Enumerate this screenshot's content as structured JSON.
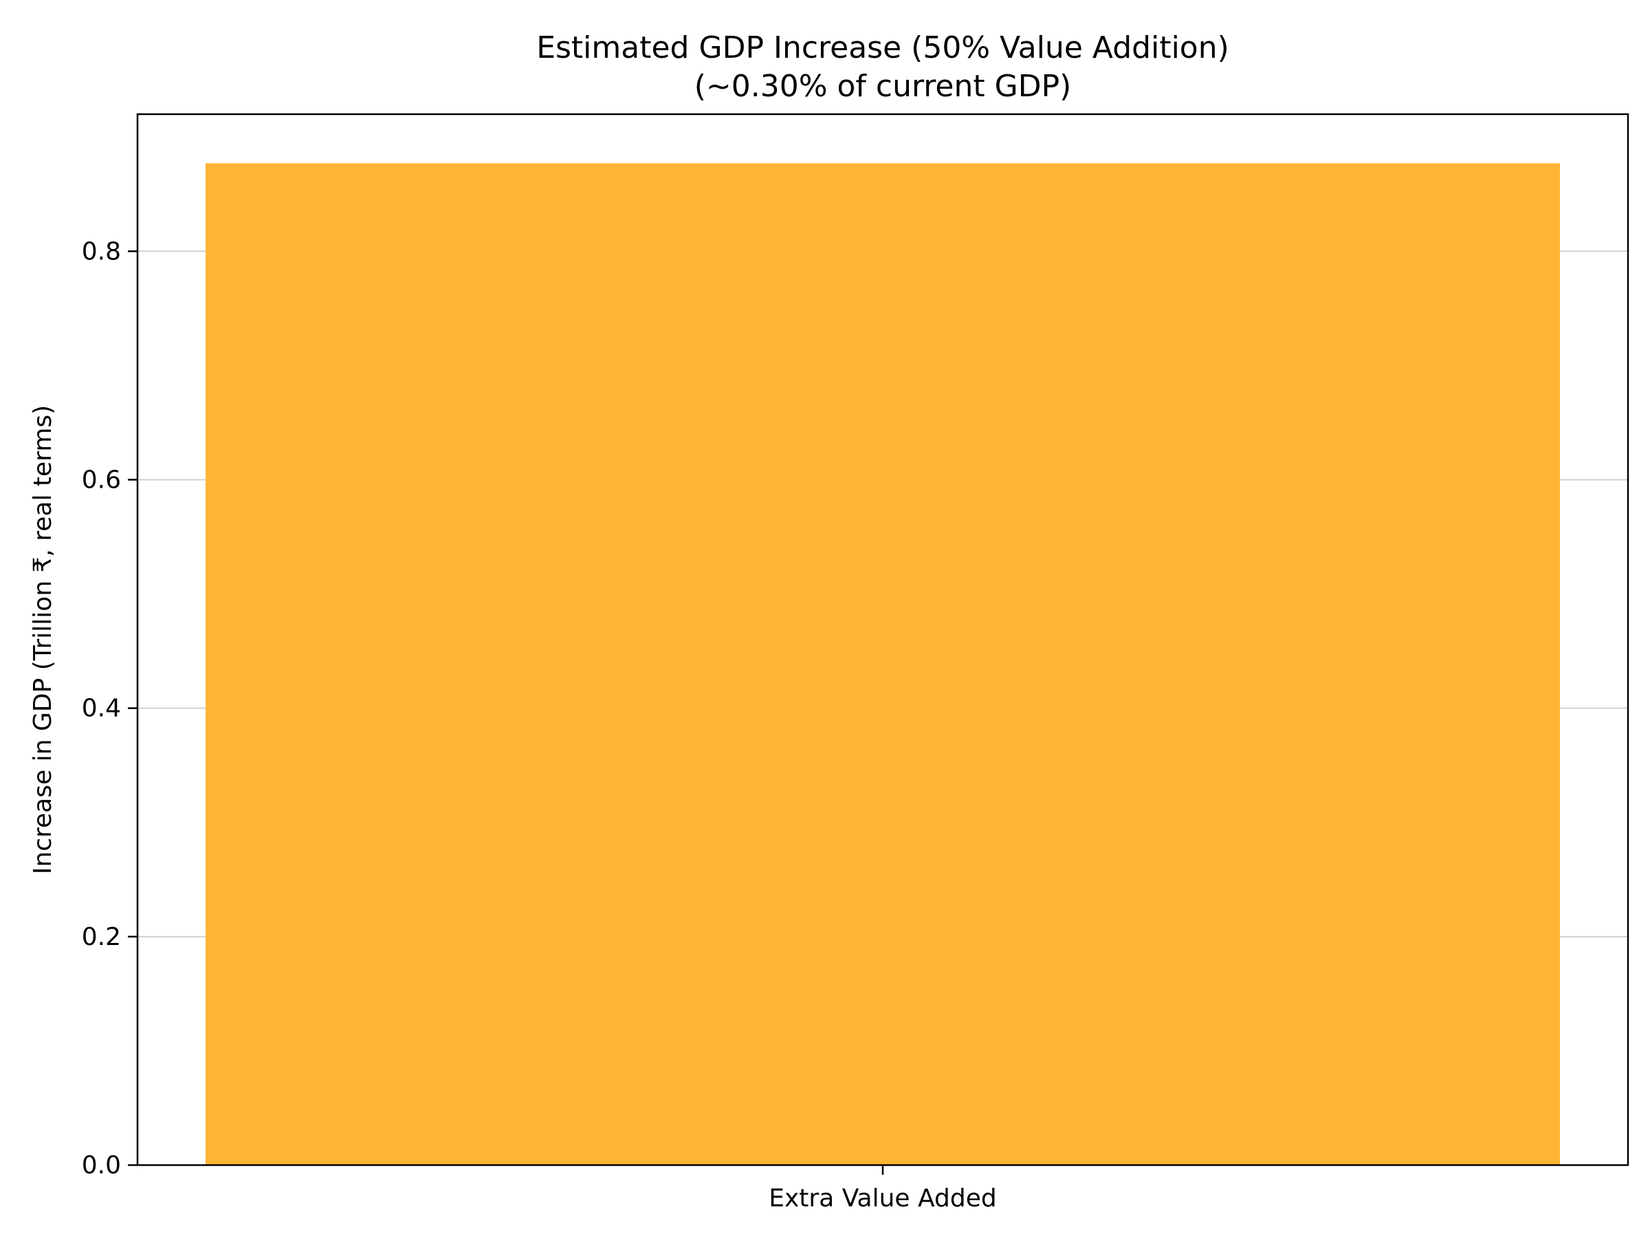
{
  "chart_data": {
    "type": "bar",
    "title": "Estimated GDP Increase (50% Value Addition)",
    "subtitle": "(~0.30% of current GDP)",
    "xlabel": "",
    "ylabel": "Increase in GDP (Trillion ₹, real terms)",
    "categories": [
      "Extra Value Added"
    ],
    "values": [
      0.877
    ],
    "ylim": [
      0,
      0.92
    ],
    "yticks": [
      0.0,
      0.2,
      0.4,
      0.6,
      0.8
    ],
    "ytick_labels": [
      "0.0",
      "0.2",
      "0.4",
      "0.6",
      "0.8"
    ],
    "grid": "y-axis",
    "legend": "none",
    "bar_color": "#FFB534"
  }
}
